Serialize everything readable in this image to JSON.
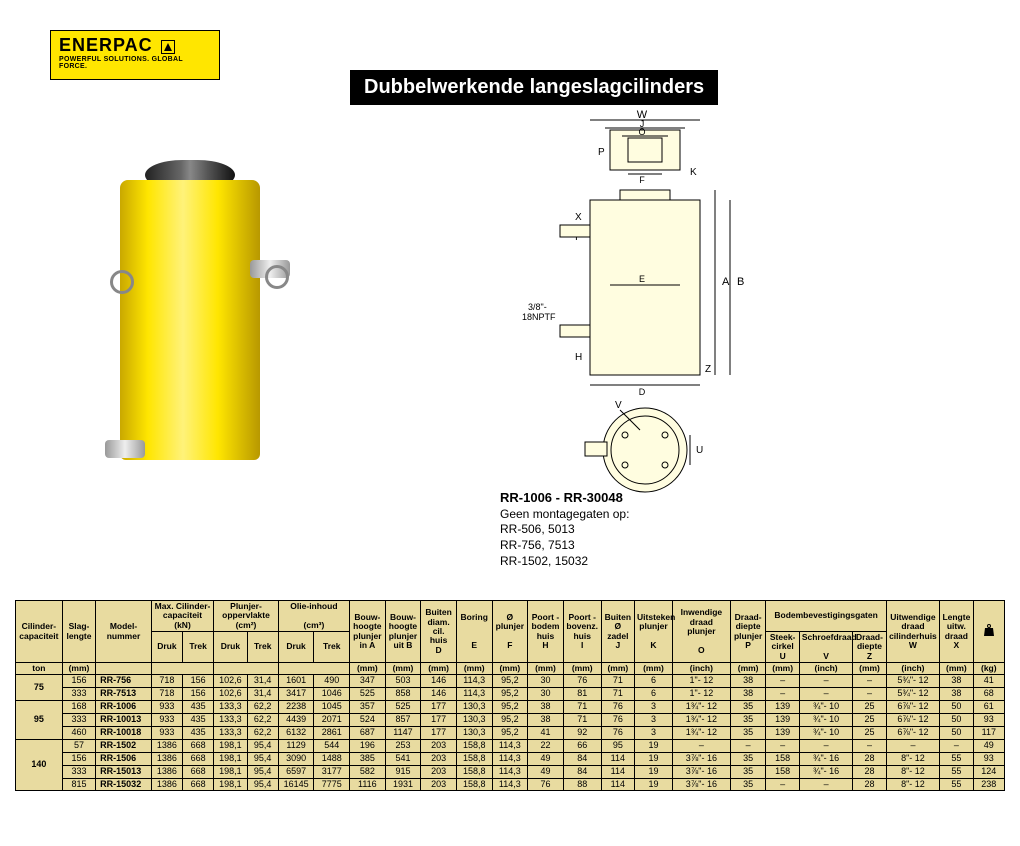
{
  "logo": {
    "brand": "ENERPAC",
    "tagline": "POWERFUL SOLUTIONS. GLOBAL FORCE."
  },
  "title": "Dubbelwerkende langeslagcilinders",
  "diagram": {
    "port_thread": "3/8\"-\n18NPTF",
    "labels": [
      "W",
      "J",
      "O",
      "P",
      "F",
      "K",
      "X",
      "I",
      "E",
      "A",
      "B",
      "H",
      "D",
      "Z",
      "V",
      "U"
    ]
  },
  "caption": {
    "range": "RR-1006 - RR-30048",
    "note_title": "Geen montagegaten op:",
    "note_lines": [
      "RR-506, 5013",
      "RR-756, 7513",
      "RR-1502, 15032"
    ]
  },
  "table": {
    "header_row1": [
      "Cilinder-\ncapaciteit",
      "Slag-\nlengte",
      "Model-\nnummer",
      "Max. Cilinder-\ncapaciteit\n(kN)",
      "Plunjer-\noppervlakte\n(cm²)",
      "Olie-inhoud\n(cm³)",
      "Bouw-\nhoogte\nplunjer\nin A",
      "Bouw-\nhoogte\nplunjer\nuit B",
      "Buiten\ndiam.\ncil. huis\nD",
      "Boring\nE",
      "Ø\nplunjer\nF",
      "Poort -\nbodem\nhuis\nH",
      "Poort -\nbovenz.\nhuis\nI",
      "Buiten\nØ\nzadel\nJ",
      "Uitsteken\nplunjer\nK",
      "Inwendige\ndraad plunjer\nO",
      "Draad-\ndiepte\nplunjer\nP",
      "Bodembevestigingsgaten",
      "Uitwendige\ndraad\ncilinderhuis\nW",
      "Lengte\nuitw.\ndraad\nX",
      "weight_icon"
    ],
    "header_row2_units": [
      "ton",
      "(mm)",
      "",
      "Druk",
      "Trek",
      "Druk",
      "Trek",
      "Druk",
      "Trek",
      "(mm)",
      "(mm)",
      "(mm)",
      "(mm)",
      "(mm)",
      "(mm)",
      "(mm)",
      "(mm)",
      "(mm)",
      "(inch)",
      "(mm)",
      "Steek-\ncirkel\nU\n(mm)",
      "Schroefdraad\nV\n(inch)",
      "Draad-\ndiepte\nZ\n(mm)",
      "(inch)",
      "(mm)",
      "(kg)"
    ],
    "sub_headers": {
      "capacity": [
        "Druk",
        "Trek"
      ],
      "surface": [
        "Druk",
        "Trek"
      ],
      "oil": [
        "Druk",
        "Trek"
      ],
      "mounting": [
        "Steek-\ncirkel\nU",
        "Schroefdraad\nV",
        "Draad-\ndiepte\nZ"
      ],
      "mounting_units": [
        "(mm)",
        "(inch)",
        "(mm)"
      ]
    },
    "groups": [
      {
        "capacity_ton": "75",
        "rows": [
          [
            "156",
            "RR-756",
            "718",
            "156",
            "102,6",
            "31,4",
            "1601",
            "490",
            "347",
            "503",
            "146",
            "114,3",
            "95,2",
            "30",
            "76",
            "71",
            "6",
            "1\"- 12",
            "38",
            "–",
            "–",
            "–",
            "5¾\"- 12",
            "38",
            "41"
          ],
          [
            "333",
            "RR-7513",
            "718",
            "156",
            "102,6",
            "31,4",
            "3417",
            "1046",
            "525",
            "858",
            "146",
            "114,3",
            "95,2",
            "30",
            "81",
            "71",
            "6",
            "1\"- 12",
            "38",
            "–",
            "–",
            "–",
            "5¾\"- 12",
            "38",
            "68"
          ]
        ]
      },
      {
        "capacity_ton": "95",
        "rows": [
          [
            "168",
            "RR-1006",
            "933",
            "435",
            "133,3",
            "62,2",
            "2238",
            "1045",
            "357",
            "525",
            "177",
            "130,3",
            "95,2",
            "38",
            "71",
            "76",
            "3",
            "1¾\"- 12",
            "35",
            "139",
            "¾\"- 10",
            "25",
            "6⅞\"- 12",
            "50",
            "61"
          ],
          [
            "333",
            "RR-10013",
            "933",
            "435",
            "133,3",
            "62,2",
            "4439",
            "2071",
            "524",
            "857",
            "177",
            "130,3",
            "95,2",
            "38",
            "71",
            "76",
            "3",
            "1¾\"- 12",
            "35",
            "139",
            "¾\"- 10",
            "25",
            "6⅞\"- 12",
            "50",
            "93"
          ],
          [
            "460",
            "RR-10018",
            "933",
            "435",
            "133,3",
            "62,2",
            "6132",
            "2861",
            "687",
            "1147",
            "177",
            "130,3",
            "95,2",
            "41",
            "92",
            "76",
            "3",
            "1¾\"- 12",
            "35",
            "139",
            "¾\"- 10",
            "25",
            "6⅞\"- 12",
            "50",
            "117"
          ]
        ]
      },
      {
        "capacity_ton": "140",
        "rows": [
          [
            "57",
            "RR-1502",
            "1386",
            "668",
            "198,1",
            "95,4",
            "1129",
            "544",
            "196",
            "253",
            "203",
            "158,8",
            "114,3",
            "22",
            "66",
            "95",
            "19",
            "–",
            "–",
            "–",
            "–",
            "–",
            "–",
            "–",
            "49"
          ],
          [
            "156",
            "RR-1506",
            "1386",
            "668",
            "198,1",
            "95,4",
            "3090",
            "1488",
            "385",
            "541",
            "203",
            "158,8",
            "114,3",
            "49",
            "84",
            "114",
            "19",
            "3⅞\"- 16",
            "35",
            "158",
            "¾\"- 16",
            "28",
            "8\"- 12",
            "55",
            "93"
          ],
          [
            "333",
            "RR-15013",
            "1386",
            "668",
            "198,1",
            "95,4",
            "6597",
            "3177",
            "582",
            "915",
            "203",
            "158,8",
            "114,3",
            "49",
            "84",
            "114",
            "19",
            "3⅞\"- 16",
            "35",
            "158",
            "¾\"- 16",
            "28",
            "8\"- 12",
            "55",
            "124"
          ],
          [
            "815",
            "RR-15032",
            "1386",
            "668",
            "198,1",
            "95,4",
            "16145",
            "7775",
            "1116",
            "1931",
            "203",
            "158,8",
            "114,3",
            "76",
            "88",
            "114",
            "19",
            "3⅞\"- 16",
            "35",
            "–",
            "–",
            "28",
            "8\"- 12",
            "55",
            "238"
          ]
        ]
      }
    ]
  },
  "colors": {
    "brand_yellow": "#ffe600",
    "table_bg": "#e8dba0"
  }
}
